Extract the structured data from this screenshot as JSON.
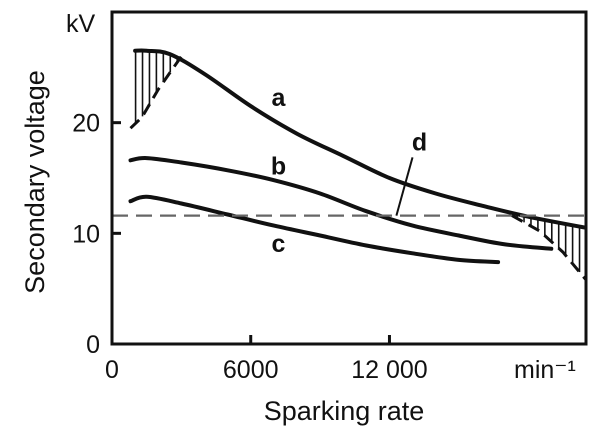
{
  "chart_data": {
    "type": "line",
    "title": "",
    "xlabel": "Sparking rate",
    "ylabel": "Secondary voltage",
    "x_unit": "min⁻¹",
    "y_unit": "kV",
    "xlim": [
      0,
      20500
    ],
    "ylim": [
      0,
      30
    ],
    "x_ticks": [
      {
        "value": 0,
        "label": "0"
      },
      {
        "value": 6000,
        "label": "6000"
      },
      {
        "value": 12000,
        "label": "12 000"
      }
    ],
    "y_ticks": [
      {
        "value": 0,
        "label": "0"
      },
      {
        "value": 10,
        "label": "10"
      },
      {
        "value": 20,
        "label": "20"
      }
    ],
    "grid": false,
    "legend": "none",
    "colors": {
      "line": "#111111",
      "reference": "#666666"
    },
    "series": [
      {
        "name": "a",
        "style": "solid",
        "x": [
          1000,
          1500,
          2500,
          4000,
          6000,
          8000,
          10000,
          12000,
          14000,
          16000,
          18000,
          20500
        ],
        "y": [
          26.5,
          26.5,
          26.2,
          24.4,
          21.5,
          19.0,
          17.0,
          15.0,
          13.6,
          12.5,
          11.5,
          10.5
        ]
      },
      {
        "name": "b",
        "style": "solid",
        "x": [
          800,
          1500,
          3000,
          5000,
          7000,
          9000,
          11000,
          13000,
          15000,
          17000,
          19000
        ],
        "y": [
          16.6,
          16.8,
          16.4,
          15.7,
          14.8,
          13.6,
          12.0,
          10.7,
          9.8,
          9.0,
          8.6
        ]
      },
      {
        "name": "c",
        "style": "solid",
        "x": [
          800,
          1500,
          3000,
          5000,
          7000,
          9000,
          11000,
          13000,
          15000,
          16700
        ],
        "y": [
          12.9,
          13.3,
          12.7,
          11.7,
          10.7,
          9.8,
          8.9,
          8.2,
          7.6,
          7.4
        ]
      },
      {
        "name": "d",
        "style": "dashed",
        "x": [
          0,
          20500
        ],
        "y": [
          11.6,
          11.6
        ]
      },
      {
        "name": "",
        "style": "dashed",
        "x": [
          800,
          1300,
          2000,
          3000
        ],
        "y": [
          19.5,
          20.5,
          23.0,
          26.0
        ]
      },
      {
        "name": "",
        "style": "dashed",
        "x": [
          17300,
          18500,
          19500,
          20500
        ],
        "y": [
          11.6,
          10.2,
          8.3,
          5.8
        ]
      }
    ],
    "hatched_regions": [
      {
        "between": "a and rising dashed curve",
        "x_range": [
          800,
          3000
        ]
      },
      {
        "between": "a and falling dashed curve",
        "x_range": [
          17300,
          20500
        ]
      }
    ],
    "annotations": [
      {
        "text": "a",
        "x": 7200,
        "y": 21.5
      },
      {
        "text": "b",
        "x": 7200,
        "y": 15.3
      },
      {
        "text": "c",
        "x": 7200,
        "y": 8.3
      },
      {
        "text": "d",
        "x": 13300,
        "y": 17.5,
        "leader_to": {
          "x": 12300,
          "y": 11.6
        }
      }
    ]
  }
}
